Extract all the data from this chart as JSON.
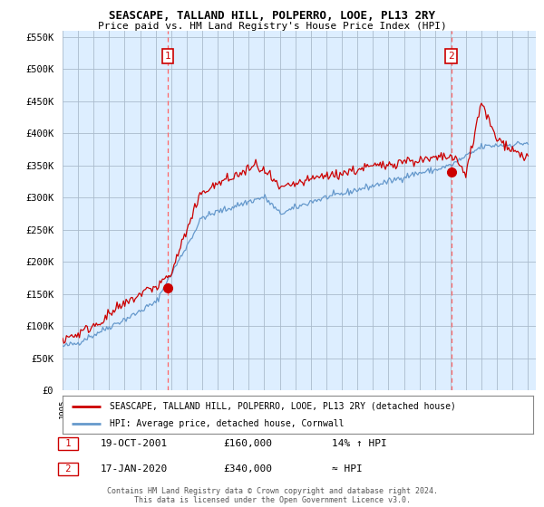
{
  "title": "SEASCAPE, TALLAND HILL, POLPERRO, LOOE, PL13 2RY",
  "subtitle": "Price paid vs. HM Land Registry's House Price Index (HPI)",
  "legend_label_red": "SEASCAPE, TALLAND HILL, POLPERRO, LOOE, PL13 2RY (detached house)",
  "legend_label_blue": "HPI: Average price, detached house, Cornwall",
  "annotation1_label": "1",
  "annotation1_date": "19-OCT-2001",
  "annotation1_price": "£160,000",
  "annotation1_pct": "14% ↑ HPI",
  "annotation2_label": "2",
  "annotation2_date": "17-JAN-2020",
  "annotation2_price": "£340,000",
  "annotation2_pct": "≈ HPI",
  "footer": "Contains HM Land Registry data © Crown copyright and database right 2024.\nThis data is licensed under the Open Government Licence v3.0.",
  "ylim": [
    0,
    560000
  ],
  "yticks": [
    0,
    50000,
    100000,
    150000,
    200000,
    250000,
    300000,
    350000,
    400000,
    450000,
    500000,
    550000
  ],
  "red_color": "#cc0000",
  "blue_color": "#6699cc",
  "dashed_color": "#ff6666",
  "chart_bg": "#ddeeff",
  "background_color": "#ffffff",
  "grid_color": "#aabbcc"
}
